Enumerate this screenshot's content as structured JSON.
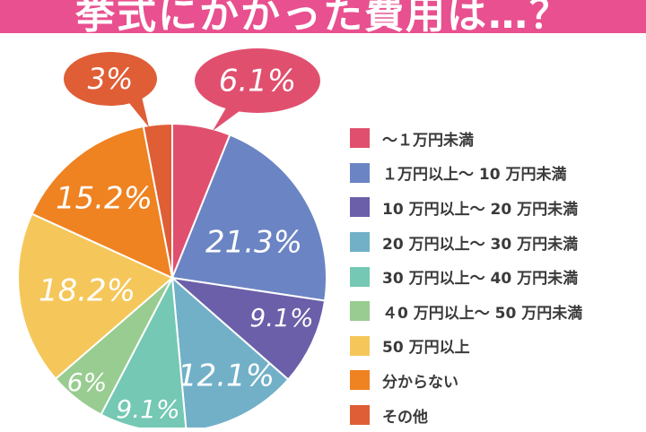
{
  "title": "挙式にかかった費用は…？",
  "chart_data": {
    "type": "pie",
    "title": "挙式にかかった費用は…？",
    "legend_position": "right",
    "categories": [
      "～１万円未満",
      "１万円以上～ 10 万円未満",
      "10 万円以上～ 20 万円未満",
      "20 万円以上～ 30 万円未満",
      "30 万円以上～ 40 万円未満",
      "４0 万円以上～ 50 万円未満",
      "50 万円以上",
      "分からない",
      "その他"
    ],
    "values": [
      6.1,
      21.3,
      9.1,
      12.1,
      9.1,
      6,
      18.2,
      15.2,
      3
    ],
    "labels": [
      "6.1%",
      "21.3%",
      "9.1%",
      "12.1%",
      "9.1%",
      "6%",
      "18.2%",
      "15.2%",
      "3%"
    ],
    "colors": [
      "#e0506e",
      "#6b84c4",
      "#6a5fa8",
      "#72b0c8",
      "#74c8b4",
      "#98cc90",
      "#f5c75a",
      "#ef8221",
      "#df5e36"
    ]
  }
}
